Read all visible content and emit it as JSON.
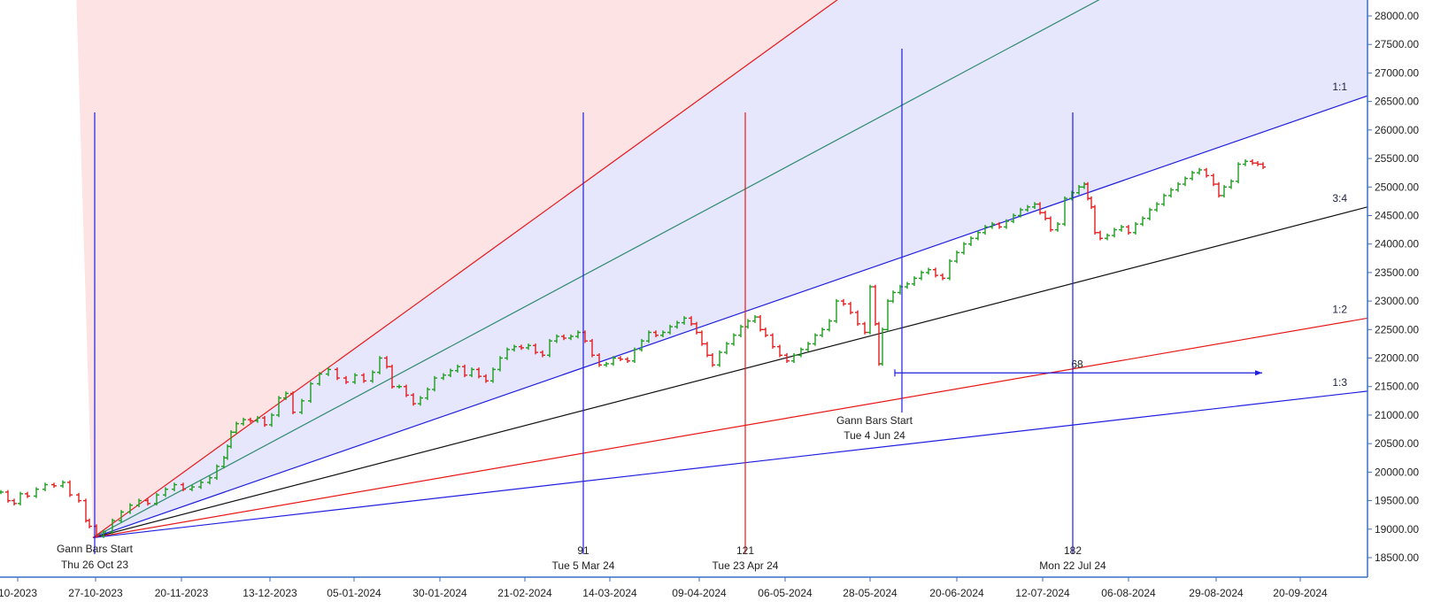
{
  "chart_data": {
    "type": "gann-fan-ohlc",
    "title": "",
    "xlabel": "",
    "ylabel": "",
    "colors": {
      "up_bar": "#1f9d1f",
      "down_bar": "#e02020",
      "axis": "#3a6fc4",
      "fan_fill_red": "#fde0e0",
      "fan_fill_blue": "#e3e3fc",
      "blue_line": "#1f1fe0",
      "red_line": "#e81818",
      "green_line": "#2e8b6e",
      "black_line": "#111111"
    },
    "y_axis": {
      "range": [
        18420,
        28300
      ],
      "ticks": [
        "28000.00",
        "27500.00",
        "27000.00",
        "26500.00",
        "26000.00",
        "25500.00",
        "25000.00",
        "24500.00",
        "24000.00",
        "23500.00",
        "23000.00",
        "22500.00",
        "22000.00",
        "21500.00",
        "21000.00",
        "20500.00",
        "20000.00",
        "19500.00",
        "19000.00",
        "18500.00"
      ]
    },
    "x_axis": {
      "ticks": [
        "10-2023",
        "27-10-2023",
        "20-11-2023",
        "13-12-2023",
        "05-01-2024",
        "30-01-2024",
        "21-02-2024",
        "14-03-2024",
        "09-04-2024",
        "06-05-2024",
        "28-05-2024",
        "20-06-2024",
        "12-07-2024",
        "06-08-2024",
        "29-08-2024",
        "20-09-2024"
      ]
    },
    "gann_start": {
      "line1": "Gann Bars Start",
      "line2": "Thu 26 Oct 23",
      "value": 18850
    },
    "gann_start_2": {
      "line1": "Gann Bars Start",
      "line2": "Tue 4 Jun 24"
    },
    "fan_angles": [
      {
        "name": "1:1",
        "color": "blue",
        "end_value": 26600
      },
      {
        "name": "3:4",
        "color": "black",
        "end_value": 24650
      },
      {
        "name": "1:2",
        "color": "red",
        "end_value": 22700
      },
      {
        "name": "1:3",
        "color": "blue",
        "end_value": 21420
      },
      {
        "name": "",
        "color": "green",
        "end_value": 30800
      },
      {
        "name": "",
        "color": "red",
        "end_value": 35000
      }
    ],
    "cycle_markers": [
      {
        "count": "91",
        "date": "Tue 5 Mar 24",
        "color": "blue"
      },
      {
        "count": "121",
        "date": "Tue 23 Apr 24",
        "color": "red"
      },
      {
        "count": "182",
        "date": "Mon 22 Jul 24",
        "color": "blue"
      }
    ],
    "measure": {
      "label": "68",
      "value": 21740
    },
    "price_path": [
      [
        0,
        19650
      ],
      [
        8,
        19500
      ],
      [
        15,
        19450
      ],
      [
        22,
        19620
      ],
      [
        30,
        19580
      ],
      [
        40,
        19700
      ],
      [
        50,
        19780
      ],
      [
        60,
        19760
      ],
      [
        70,
        19820
      ],
      [
        78,
        19600
      ],
      [
        88,
        19500
      ],
      [
        96,
        19150
      ],
      [
        100,
        19050
      ],
      [
        108,
        18880
      ],
      [
        116,
        18950
      ],
      [
        126,
        19150
      ],
      [
        136,
        19300
      ],
      [
        146,
        19420
      ],
      [
        156,
        19500
      ],
      [
        166,
        19450
      ],
      [
        176,
        19600
      ],
      [
        186,
        19700
      ],
      [
        196,
        19780
      ],
      [
        206,
        19700
      ],
      [
        216,
        19740
      ],
      [
        226,
        19820
      ],
      [
        236,
        19900
      ],
      [
        244,
        20100
      ],
      [
        252,
        20250
      ],
      [
        256,
        20450
      ],
      [
        260,
        20700
      ],
      [
        266,
        20850
      ],
      [
        274,
        20920
      ],
      [
        282,
        20900
      ],
      [
        290,
        20950
      ],
      [
        298,
        20830
      ],
      [
        306,
        21000
      ],
      [
        314,
        21300
      ],
      [
        322,
        21380
      ],
      [
        330,
        21050
      ],
      [
        340,
        21250
      ],
      [
        350,
        21550
      ],
      [
        360,
        21720
      ],
      [
        370,
        21800
      ],
      [
        380,
        21650
      ],
      [
        390,
        21580
      ],
      [
        400,
        21700
      ],
      [
        410,
        21600
      ],
      [
        420,
        21750
      ],
      [
        428,
        22000
      ],
      [
        436,
        21850
      ],
      [
        442,
        21500
      ],
      [
        450,
        21500
      ],
      [
        458,
        21350
      ],
      [
        466,
        21200
      ],
      [
        474,
        21300
      ],
      [
        482,
        21450
      ],
      [
        490,
        21650
      ],
      [
        500,
        21700
      ],
      [
        508,
        21780
      ],
      [
        516,
        21850
      ],
      [
        524,
        21700
      ],
      [
        532,
        21800
      ],
      [
        540,
        21680
      ],
      [
        548,
        21600
      ],
      [
        556,
        21800
      ],
      [
        564,
        22000
      ],
      [
        572,
        22150
      ],
      [
        580,
        22200
      ],
      [
        588,
        22180
      ],
      [
        596,
        22220
      ],
      [
        604,
        22100
      ],
      [
        612,
        22050
      ],
      [
        620,
        22300
      ],
      [
        628,
        22380
      ],
      [
        636,
        22350
      ],
      [
        644,
        22380
      ],
      [
        652,
        22450
      ],
      [
        660,
        22300
      ],
      [
        668,
        22050
      ],
      [
        676,
        21880
      ],
      [
        684,
        21900
      ],
      [
        692,
        22000
      ],
      [
        700,
        21980
      ],
      [
        708,
        21950
      ],
      [
        716,
        22150
      ],
      [
        724,
        22300
      ],
      [
        732,
        22450
      ],
      [
        740,
        22400
      ],
      [
        748,
        22450
      ],
      [
        756,
        22550
      ],
      [
        764,
        22620
      ],
      [
        772,
        22700
      ],
      [
        780,
        22600
      ],
      [
        786,
        22450
      ],
      [
        792,
        22250
      ],
      [
        798,
        22050
      ],
      [
        804,
        21880
      ],
      [
        812,
        22100
      ],
      [
        820,
        22250
      ],
      [
        828,
        22400
      ],
      [
        836,
        22550
      ],
      [
        844,
        22650
      ],
      [
        852,
        22720
      ],
      [
        858,
        22500
      ],
      [
        864,
        22400
      ],
      [
        872,
        22200
      ],
      [
        880,
        22050
      ],
      [
        888,
        21950
      ],
      [
        896,
        22050
      ],
      [
        904,
        22150
      ],
      [
        912,
        22250
      ],
      [
        920,
        22400
      ],
      [
        928,
        22500
      ],
      [
        936,
        22650
      ],
      [
        944,
        23000
      ],
      [
        952,
        22950
      ],
      [
        960,
        22800
      ],
      [
        968,
        22600
      ],
      [
        976,
        22450
      ],
      [
        982,
        23250
      ],
      [
        988,
        22600
      ],
      [
        992,
        21900
      ],
      [
        996,
        22500
      ],
      [
        1002,
        23000
      ],
      [
        1008,
        23150
      ],
      [
        1016,
        23250
      ],
      [
        1024,
        23300
      ],
      [
        1032,
        23400
      ],
      [
        1040,
        23500
      ],
      [
        1048,
        23550
      ],
      [
        1056,
        23450
      ],
      [
        1064,
        23400
      ],
      [
        1072,
        23700
      ],
      [
        1080,
        23850
      ],
      [
        1088,
        24000
      ],
      [
        1096,
        24100
      ],
      [
        1104,
        24200
      ],
      [
        1112,
        24300
      ],
      [
        1120,
        24350
      ],
      [
        1128,
        24300
      ],
      [
        1136,
        24400
      ],
      [
        1144,
        24500
      ],
      [
        1152,
        24600
      ],
      [
        1160,
        24650
      ],
      [
        1168,
        24700
      ],
      [
        1174,
        24550
      ],
      [
        1180,
        24450
      ],
      [
        1186,
        24250
      ],
      [
        1194,
        24350
      ],
      [
        1202,
        24800
      ],
      [
        1210,
        24900
      ],
      [
        1218,
        25000
      ],
      [
        1224,
        25050
      ],
      [
        1228,
        24800
      ],
      [
        1232,
        24650
      ],
      [
        1236,
        24200
      ],
      [
        1242,
        24100
      ],
      [
        1250,
        24150
      ],
      [
        1258,
        24250
      ],
      [
        1266,
        24300
      ],
      [
        1274,
        24200
      ],
      [
        1282,
        24350
      ],
      [
        1290,
        24450
      ],
      [
        1298,
        24600
      ],
      [
        1306,
        24700
      ],
      [
        1314,
        24850
      ],
      [
        1322,
        24950
      ],
      [
        1330,
        25050
      ],
      [
        1338,
        25150
      ],
      [
        1346,
        25250
      ],
      [
        1354,
        25300
      ],
      [
        1362,
        25200
      ],
      [
        1370,
        25050
      ],
      [
        1376,
        24850
      ],
      [
        1382,
        25000
      ],
      [
        1390,
        25100
      ],
      [
        1398,
        25400
      ],
      [
        1406,
        25450
      ],
      [
        1414,
        25420
      ],
      [
        1420,
        25400
      ],
      [
        1426,
        25350
      ]
    ]
  }
}
